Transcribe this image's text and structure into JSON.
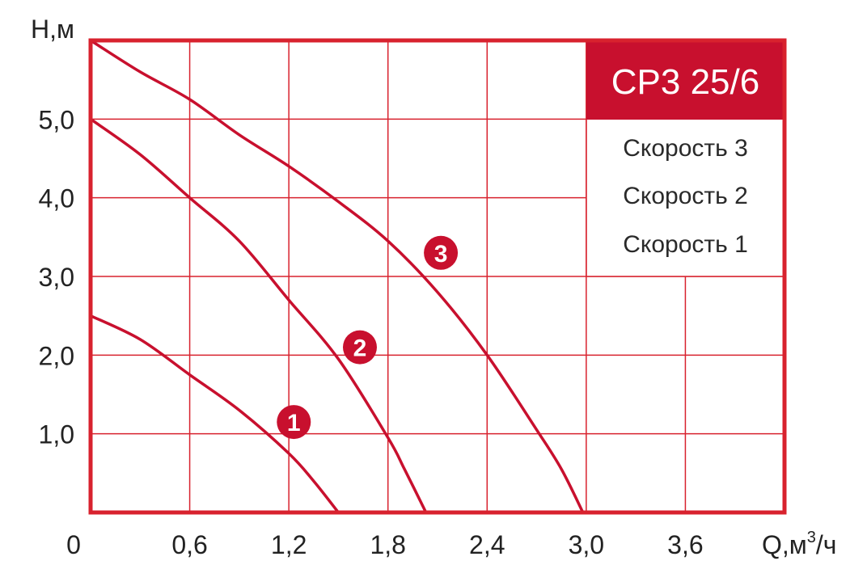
{
  "chart_data": {
    "type": "line",
    "title": "CP3 25/6",
    "xlabel": "Q,м",
    "xlabel_sup": "3",
    "xlabel_suffix": "/ч",
    "ylabel": "H,м",
    "origin_label": "0",
    "xlim": [
      0,
      4.2
    ],
    "ylim": [
      0,
      6.0
    ],
    "x_ticks": [
      0.6,
      1.2,
      1.8,
      2.4,
      3.0,
      3.6
    ],
    "x_tick_labels": [
      "0,6",
      "1,2",
      "1,8",
      "2,4",
      "3,0",
      "3,6"
    ],
    "y_ticks": [
      1.0,
      2.0,
      3.0,
      4.0,
      5.0
    ],
    "y_tick_labels": [
      "1,0",
      "2,0",
      "3,0",
      "4,0",
      "5,0"
    ],
    "grid": true,
    "legend_position": "top-right",
    "colors": {
      "line": "#c8102e",
      "frame": "#d8222e",
      "grid": "#d8222e",
      "title_bg": "#c8102e"
    },
    "legend": [
      "Скорость 3",
      "Скорость 2",
      "Скорость 1"
    ],
    "series": [
      {
        "name": "Скорость 1",
        "badge": "1",
        "x": [
          0.0,
          0.3,
          0.6,
          0.9,
          1.2,
          1.35,
          1.5
        ],
        "y": [
          2.5,
          2.2,
          1.75,
          1.3,
          0.75,
          0.4,
          0.0
        ],
        "badge_at": [
          1.23,
          1.15
        ]
      },
      {
        "name": "Скорость 2",
        "badge": "2",
        "x": [
          0.0,
          0.3,
          0.6,
          0.9,
          1.2,
          1.5,
          1.8,
          1.9,
          2.03
        ],
        "y": [
          5.0,
          4.55,
          4.0,
          3.45,
          2.7,
          1.95,
          0.95,
          0.55,
          0.0
        ],
        "badge_at": [
          1.63,
          2.1
        ]
      },
      {
        "name": "Скорость 3",
        "badge": "3",
        "x": [
          0.0,
          0.3,
          0.6,
          0.9,
          1.2,
          1.5,
          1.8,
          2.1,
          2.4,
          2.7,
          2.85,
          2.98
        ],
        "y": [
          6.0,
          5.6,
          5.25,
          4.8,
          4.4,
          3.95,
          3.45,
          2.8,
          2.0,
          1.05,
          0.55,
          0.0
        ],
        "badge_at": [
          2.12,
          3.3
        ]
      }
    ]
  }
}
